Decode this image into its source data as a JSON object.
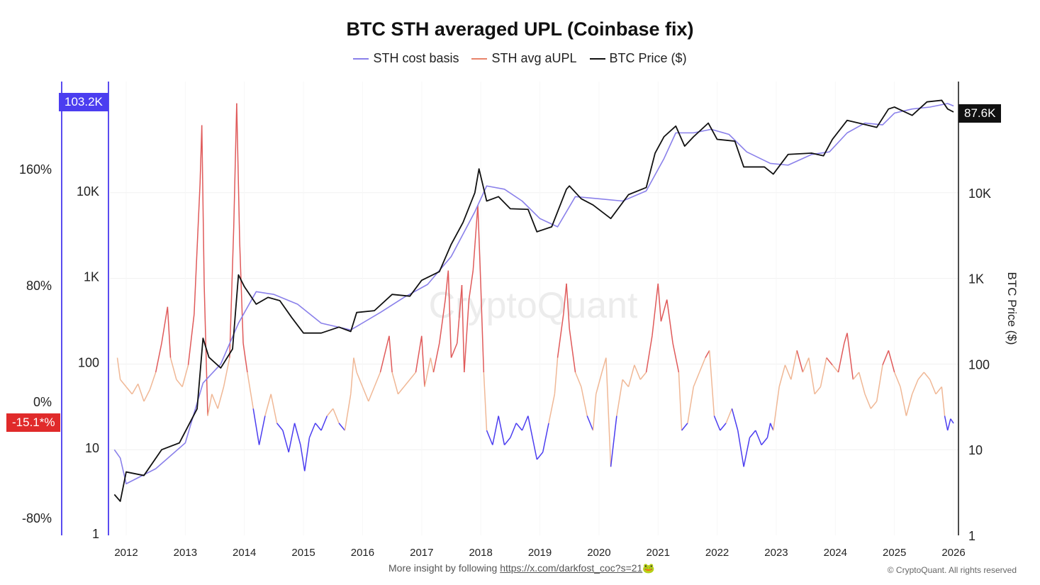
{
  "chart_data": {
    "type": "line",
    "title": "BTC STH averaged UPL (Coinbase fix)",
    "legend_placement": "top-center",
    "watermark": "CryptoQuant",
    "y_right_label": "BTC Price ($)",
    "y_right_scale": "log",
    "y_right_ticks": [
      "1",
      "10",
      "100",
      "1K",
      "10K"
    ],
    "y_right_values": [
      1,
      10,
      100,
      1000,
      10000
    ],
    "y_inner_left_ticks": [
      "1",
      "10",
      "100",
      "1K",
      "10K"
    ],
    "y_left_ticks": [
      "-80%",
      "0%",
      "80%",
      "160%"
    ],
    "y_left_values": [
      -80,
      0,
      80,
      160
    ],
    "x_ticks": [
      "2012",
      "2013",
      "2014",
      "2015",
      "2016",
      "2017",
      "2018",
      "2019",
      "2020",
      "2021",
      "2022",
      "2023",
      "2024",
      "2025",
      "2026"
    ],
    "grid": true,
    "last_value_tags": {
      "cost_basis": "103.2K",
      "aupl": "-15.1*%",
      "price": "87.6K"
    },
    "colors": {
      "cost_basis": "#8a80ea",
      "aupl_high": "#e05a5a",
      "aupl_mid": "#f0b896",
      "aupl_low": "#4b3df0",
      "price": "#111111"
    },
    "series": [
      {
        "name": "STH cost basis",
        "axis": "price",
        "points": [
          [
            2011.8,
            10
          ],
          [
            2011.9,
            8
          ],
          [
            2012.0,
            4
          ],
          [
            2012.5,
            6
          ],
          [
            2013.0,
            12
          ],
          [
            2013.3,
            60
          ],
          [
            2013.6,
            100
          ],
          [
            2013.9,
            300
          ],
          [
            2014.2,
            700
          ],
          [
            2014.5,
            650
          ],
          [
            2014.9,
            500
          ],
          [
            2015.3,
            300
          ],
          [
            2015.8,
            250
          ],
          [
            2016.3,
            400
          ],
          [
            2016.7,
            600
          ],
          [
            2017.1,
            850
          ],
          [
            2017.5,
            1800
          ],
          [
            2017.9,
            6000
          ],
          [
            2018.1,
            12000
          ],
          [
            2018.4,
            11000
          ],
          [
            2018.7,
            8000
          ],
          [
            2019.0,
            5000
          ],
          [
            2019.3,
            4000
          ],
          [
            2019.6,
            9000
          ],
          [
            2020.0,
            8500
          ],
          [
            2020.4,
            8000
          ],
          [
            2020.8,
            10500
          ],
          [
            2021.1,
            25000
          ],
          [
            2021.3,
            50000
          ],
          [
            2021.6,
            50000
          ],
          [
            2021.9,
            55000
          ],
          [
            2022.2,
            48000
          ],
          [
            2022.5,
            30000
          ],
          [
            2022.9,
            22000
          ],
          [
            2023.2,
            21000
          ],
          [
            2023.6,
            28000
          ],
          [
            2023.9,
            30000
          ],
          [
            2024.2,
            50000
          ],
          [
            2024.5,
            65000
          ],
          [
            2024.8,
            62000
          ],
          [
            2025.0,
            85000
          ],
          [
            2025.3,
            95000
          ],
          [
            2025.6,
            100000
          ],
          [
            2025.9,
            110000
          ],
          [
            2026.0,
            103200
          ]
        ]
      },
      {
        "name": "STH avg aUPL",
        "axis": "percent",
        "points": [
          [
            2011.85,
            30
          ],
          [
            2011.9,
            15
          ],
          [
            2012.0,
            10
          ],
          [
            2012.1,
            5
          ],
          [
            2012.2,
            12
          ],
          [
            2012.3,
            0
          ],
          [
            2012.4,
            8
          ],
          [
            2012.5,
            20
          ],
          [
            2012.6,
            40
          ],
          [
            2012.7,
            65
          ],
          [
            2012.75,
            30
          ],
          [
            2012.85,
            15
          ],
          [
            2012.95,
            10
          ],
          [
            2013.05,
            25
          ],
          [
            2013.15,
            60
          ],
          [
            2013.25,
            150
          ],
          [
            2013.28,
            190
          ],
          [
            2013.32,
            80
          ],
          [
            2013.38,
            -10
          ],
          [
            2013.45,
            5
          ],
          [
            2013.55,
            -5
          ],
          [
            2013.65,
            10
          ],
          [
            2013.75,
            30
          ],
          [
            2013.82,
            120
          ],
          [
            2013.87,
            205
          ],
          [
            2013.92,
            110
          ],
          [
            2013.98,
            40
          ],
          [
            2014.05,
            20
          ],
          [
            2014.15,
            -5
          ],
          [
            2014.25,
            -30
          ],
          [
            2014.35,
            -10
          ],
          [
            2014.45,
            5
          ],
          [
            2014.55,
            -15
          ],
          [
            2014.65,
            -20
          ],
          [
            2014.75,
            -35
          ],
          [
            2014.85,
            -15
          ],
          [
            2014.95,
            -30
          ],
          [
            2015.02,
            -48
          ],
          [
            2015.1,
            -25
          ],
          [
            2015.2,
            -15
          ],
          [
            2015.3,
            -20
          ],
          [
            2015.4,
            -10
          ],
          [
            2015.5,
            -5
          ],
          [
            2015.6,
            -15
          ],
          [
            2015.7,
            -20
          ],
          [
            2015.8,
            5
          ],
          [
            2015.85,
            30
          ],
          [
            2015.9,
            20
          ],
          [
            2016.0,
            10
          ],
          [
            2016.1,
            0
          ],
          [
            2016.2,
            10
          ],
          [
            2016.3,
            20
          ],
          [
            2016.45,
            45
          ],
          [
            2016.5,
            20
          ],
          [
            2016.6,
            5
          ],
          [
            2016.7,
            10
          ],
          [
            2016.8,
            15
          ],
          [
            2016.9,
            20
          ],
          [
            2017.0,
            45
          ],
          [
            2017.05,
            10
          ],
          [
            2017.15,
            30
          ],
          [
            2017.2,
            20
          ],
          [
            2017.3,
            40
          ],
          [
            2017.4,
            70
          ],
          [
            2017.45,
            90
          ],
          [
            2017.5,
            30
          ],
          [
            2017.6,
            40
          ],
          [
            2017.68,
            80
          ],
          [
            2017.72,
            20
          ],
          [
            2017.8,
            70
          ],
          [
            2017.87,
            90
          ],
          [
            2017.95,
            135
          ],
          [
            2018.0,
            80
          ],
          [
            2018.05,
            20
          ],
          [
            2018.1,
            -20
          ],
          [
            2018.2,
            -30
          ],
          [
            2018.3,
            -10
          ],
          [
            2018.4,
            -30
          ],
          [
            2018.5,
            -25
          ],
          [
            2018.6,
            -15
          ],
          [
            2018.7,
            -20
          ],
          [
            2018.8,
            -10
          ],
          [
            2018.9,
            -30
          ],
          [
            2018.95,
            -40
          ],
          [
            2019.05,
            -35
          ],
          [
            2019.15,
            -15
          ],
          [
            2019.25,
            5
          ],
          [
            2019.3,
            30
          ],
          [
            2019.4,
            60
          ],
          [
            2019.45,
            81
          ],
          [
            2019.5,
            50
          ],
          [
            2019.6,
            20
          ],
          [
            2019.7,
            10
          ],
          [
            2019.8,
            -10
          ],
          [
            2019.9,
            -20
          ],
          [
            2019.95,
            5
          ],
          [
            2020.05,
            20
          ],
          [
            2020.12,
            30
          ],
          [
            2020.2,
            -45
          ],
          [
            2020.3,
            -10
          ],
          [
            2020.4,
            15
          ],
          [
            2020.5,
            10
          ],
          [
            2020.6,
            25
          ],
          [
            2020.7,
            15
          ],
          [
            2020.8,
            20
          ],
          [
            2020.9,
            45
          ],
          [
            2021.0,
            81
          ],
          [
            2021.05,
            55
          ],
          [
            2021.15,
            70
          ],
          [
            2021.25,
            40
          ],
          [
            2021.35,
            20
          ],
          [
            2021.4,
            -20
          ],
          [
            2021.5,
            -15
          ],
          [
            2021.6,
            10
          ],
          [
            2021.7,
            20
          ],
          [
            2021.8,
            30
          ],
          [
            2021.87,
            35
          ],
          [
            2021.95,
            -10
          ],
          [
            2022.05,
            -20
          ],
          [
            2022.15,
            -15
          ],
          [
            2022.25,
            -5
          ],
          [
            2022.35,
            -20
          ],
          [
            2022.45,
            -45
          ],
          [
            2022.55,
            -25
          ],
          [
            2022.65,
            -20
          ],
          [
            2022.75,
            -30
          ],
          [
            2022.85,
            -25
          ],
          [
            2022.9,
            -15
          ],
          [
            2022.95,
            -20
          ],
          [
            2023.05,
            10
          ],
          [
            2023.15,
            25
          ],
          [
            2023.25,
            15
          ],
          [
            2023.35,
            35
          ],
          [
            2023.45,
            20
          ],
          [
            2023.55,
            30
          ],
          [
            2023.65,
            5
          ],
          [
            2023.75,
            10
          ],
          [
            2023.85,
            30
          ],
          [
            2023.95,
            25
          ],
          [
            2024.05,
            20
          ],
          [
            2024.15,
            40
          ],
          [
            2024.2,
            47
          ],
          [
            2024.3,
            15
          ],
          [
            2024.4,
            20
          ],
          [
            2024.5,
            5
          ],
          [
            2024.6,
            -5
          ],
          [
            2024.7,
            0
          ],
          [
            2024.8,
            25
          ],
          [
            2024.9,
            35
          ],
          [
            2025.0,
            20
          ],
          [
            2025.1,
            10
          ],
          [
            2025.2,
            -10
          ],
          [
            2025.3,
            5
          ],
          [
            2025.4,
            15
          ],
          [
            2025.5,
            20
          ],
          [
            2025.6,
            15
          ],
          [
            2025.7,
            5
          ],
          [
            2025.8,
            10
          ],
          [
            2025.85,
            -10
          ],
          [
            2025.9,
            -20
          ],
          [
            2025.95,
            -12
          ],
          [
            2026.0,
            -15.1
          ]
        ]
      },
      {
        "name": "BTC Price ($)",
        "axis": "price",
        "points": [
          [
            2011.8,
            3
          ],
          [
            2011.9,
            2.5
          ],
          [
            2012.0,
            5.5
          ],
          [
            2012.3,
            5
          ],
          [
            2012.6,
            10
          ],
          [
            2012.9,
            12
          ],
          [
            2013.2,
            30
          ],
          [
            2013.3,
            200
          ],
          [
            2013.4,
            120
          ],
          [
            2013.6,
            90
          ],
          [
            2013.8,
            150
          ],
          [
            2013.9,
            1100
          ],
          [
            2014.0,
            800
          ],
          [
            2014.2,
            500
          ],
          [
            2014.4,
            600
          ],
          [
            2014.6,
            550
          ],
          [
            2014.8,
            350
          ],
          [
            2015.0,
            230
          ],
          [
            2015.3,
            230
          ],
          [
            2015.6,
            270
          ],
          [
            2015.8,
            240
          ],
          [
            2015.9,
            400
          ],
          [
            2016.2,
            420
          ],
          [
            2016.5,
            650
          ],
          [
            2016.8,
            620
          ],
          [
            2017.0,
            950
          ],
          [
            2017.3,
            1200
          ],
          [
            2017.5,
            2500
          ],
          [
            2017.7,
            4500
          ],
          [
            2017.9,
            10000
          ],
          [
            2017.97,
            19000
          ],
          [
            2018.1,
            8000
          ],
          [
            2018.3,
            9000
          ],
          [
            2018.5,
            6500
          ],
          [
            2018.8,
            6400
          ],
          [
            2018.95,
            3500
          ],
          [
            2019.2,
            4000
          ],
          [
            2019.45,
            11000
          ],
          [
            2019.5,
            12000
          ],
          [
            2019.7,
            8500
          ],
          [
            2019.9,
            7200
          ],
          [
            2020.2,
            5000
          ],
          [
            2020.5,
            9500
          ],
          [
            2020.8,
            11500
          ],
          [
            2020.95,
            29000
          ],
          [
            2021.1,
            45000
          ],
          [
            2021.3,
            60000
          ],
          [
            2021.45,
            35000
          ],
          [
            2021.6,
            45000
          ],
          [
            2021.85,
            65000
          ],
          [
            2022.0,
            42000
          ],
          [
            2022.3,
            40000
          ],
          [
            2022.45,
            20000
          ],
          [
            2022.8,
            20000
          ],
          [
            2022.95,
            16500
          ],
          [
            2023.2,
            28000
          ],
          [
            2023.6,
            29000
          ],
          [
            2023.8,
            27000
          ],
          [
            2023.95,
            42000
          ],
          [
            2024.2,
            70000
          ],
          [
            2024.4,
            65000
          ],
          [
            2024.7,
            58000
          ],
          [
            2024.9,
            95000
          ],
          [
            2025.0,
            100000
          ],
          [
            2025.3,
            80000
          ],
          [
            2025.55,
            115000
          ],
          [
            2025.8,
            120000
          ],
          [
            2025.9,
            95000
          ],
          [
            2026.0,
            87600
          ]
        ]
      }
    ]
  },
  "footer": {
    "text": "More insight by following ",
    "link": "https://x.com/darkfost_coc?s=21",
    "emoji": "🐸",
    "copyright": "© CryptoQuant. All rights reserved"
  }
}
